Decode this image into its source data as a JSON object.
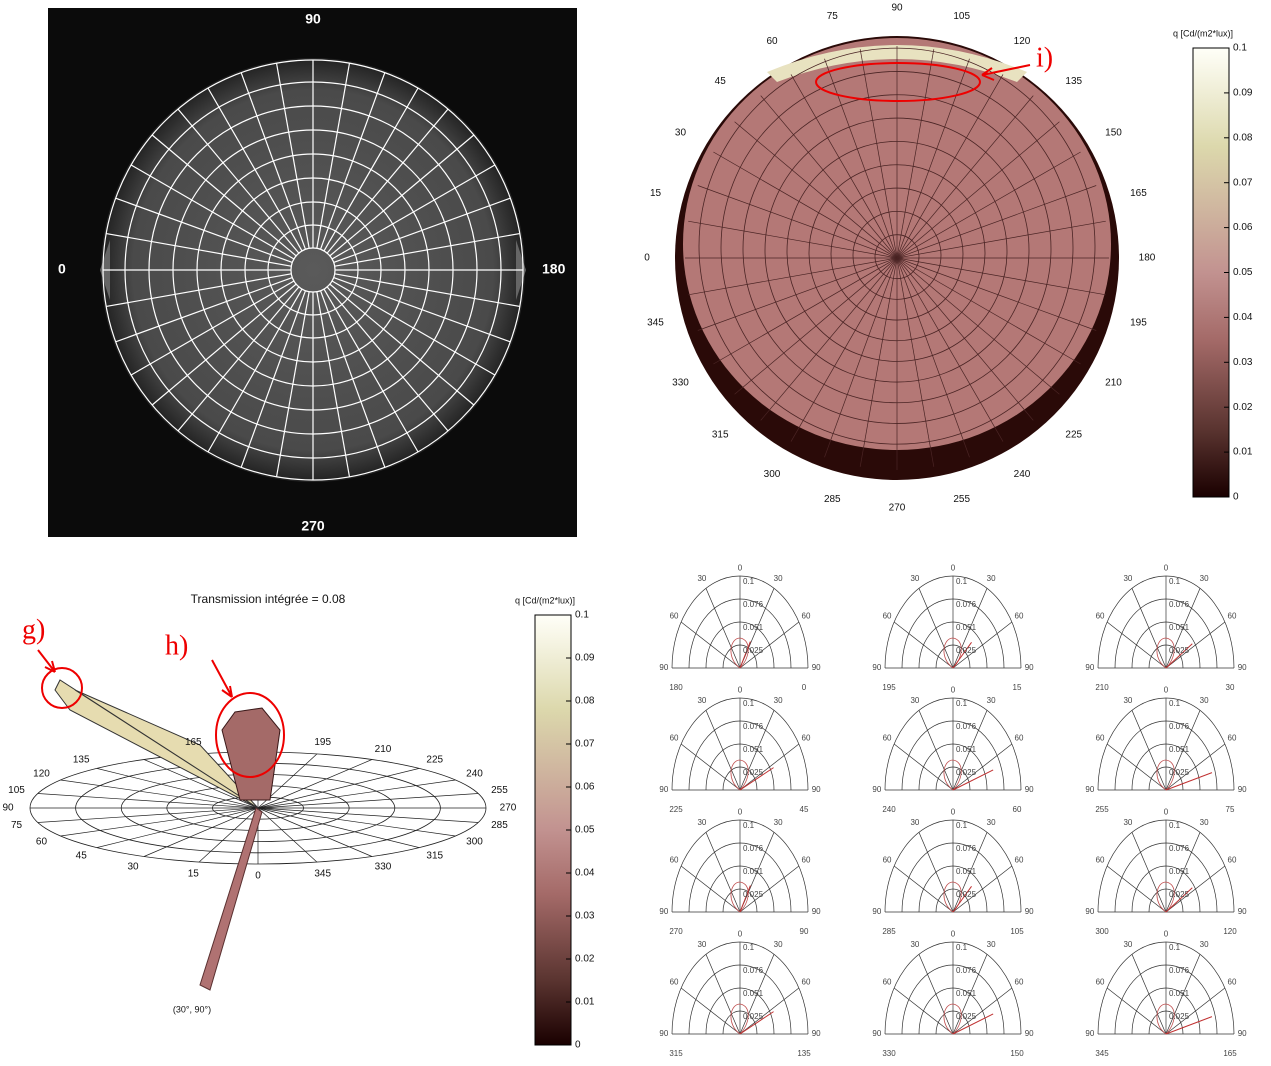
{
  "image_map": {
    "top": "90",
    "left": "0",
    "right": "180",
    "bottom": "270"
  },
  "top_polar": {
    "angle_labels": [
      "0",
      "15",
      "30",
      "45",
      "60",
      "75",
      "90",
      "105",
      "120",
      "135",
      "150",
      "165",
      "180",
      "195",
      "210",
      "225",
      "240",
      "255",
      "270",
      "285",
      "300",
      "315",
      "330",
      "345"
    ],
    "annotation": "i)",
    "colorbar": {
      "title": "q [Cd/(m2*lux)]",
      "ticks": [
        "0",
        "0.01",
        "0.02",
        "0.03",
        "0.04",
        "0.05",
        "0.06",
        "0.07",
        "0.08",
        "0.09",
        "0.1"
      ]
    }
  },
  "projection_3d": {
    "title": "Transmission intégrée = 0.08",
    "angle_labels": [
      [
        "0",
        0
      ],
      [
        "15",
        15
      ],
      [
        "30",
        30
      ],
      [
        "45",
        45
      ],
      [
        "60",
        60
      ],
      [
        "75",
        75
      ],
      [
        "90",
        90
      ],
      [
        "105",
        105
      ],
      [
        "120",
        120
      ],
      [
        "135",
        135
      ],
      [
        "165",
        165
      ],
      [
        "195",
        195
      ],
      [
        "210",
        210
      ],
      [
        "225",
        225
      ],
      [
        "240",
        240
      ],
      [
        "255",
        255
      ],
      [
        "270",
        270
      ],
      [
        "285",
        285
      ],
      [
        "300",
        300
      ],
      [
        "315",
        315
      ],
      [
        "330",
        330
      ],
      [
        "345",
        345
      ]
    ],
    "direction_label": "(30°, 90°)",
    "annotations": [
      "g)",
      "h)"
    ],
    "colorbar": {
      "title": "q [Cd/(m2*lux)]",
      "ticks": [
        "0",
        "0.01",
        "0.02",
        "0.03",
        "0.04",
        "0.05",
        "0.06",
        "0.07",
        "0.08",
        "0.09",
        "0.1"
      ]
    }
  },
  "small_polars": {
    "angle_labels": [
      "0",
      "30",
      "30",
      "60",
      "60",
      "90",
      "90"
    ],
    "radial_labels": [
      "0.1",
      "0.076",
      "0.051",
      "0.025"
    ],
    "plots": [
      [
        "180",
        "0"
      ],
      [
        "195",
        "15"
      ],
      [
        "210",
        "30"
      ],
      [
        "225",
        "45"
      ],
      [
        "240",
        "60"
      ],
      [
        "255",
        "75"
      ],
      [
        "270",
        "90"
      ],
      [
        "285",
        "105"
      ],
      [
        "300",
        "120"
      ],
      [
        "315",
        "135"
      ],
      [
        "330",
        "150"
      ],
      [
        "345",
        "165"
      ]
    ]
  }
}
